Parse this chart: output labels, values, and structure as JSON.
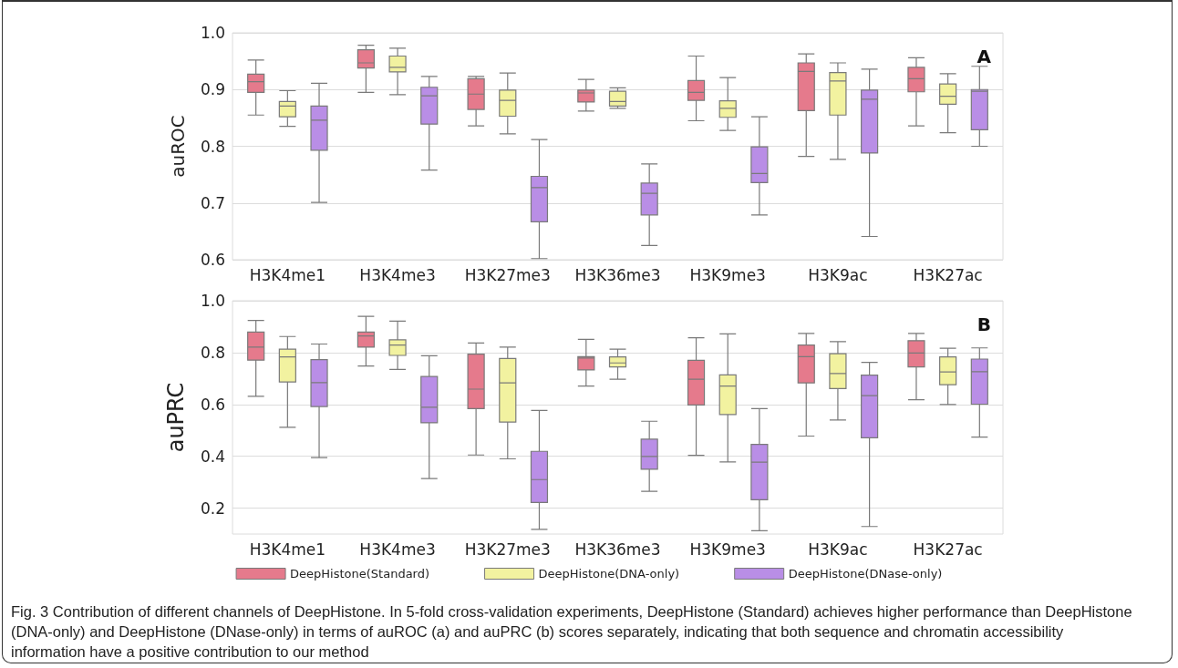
{
  "chart_data": [
    {
      "type": "box",
      "ylabel": "auROC",
      "categories": [
        "H3K4me1",
        "H3K4me3",
        "H3K27me3",
        "H3K36me3",
        "H3K9me3",
        "H3K9ac",
        "H3K27ac"
      ],
      "ylim": [
        0.6,
        1.0
      ],
      "yticks": [
        0.6,
        0.7,
        0.8,
        0.9,
        {
          "value": 1.0,
          "label": "1.0"
        }
      ],
      "grid": "y",
      "legend": false,
      "annotations": [
        "A"
      ],
      "series": [
        {
          "color": "#e57a8c",
          "boxes": [
            {
              "low": 0.855,
              "q1": 0.895,
              "median": 0.914,
              "q3": 0.927,
              "high": 0.952
            },
            {
              "low": 0.895,
              "q1": 0.938,
              "median": 0.947,
              "q3": 0.97,
              "high": 0.978
            },
            {
              "low": 0.836,
              "q1": 0.865,
              "median": 0.892,
              "q3": 0.919,
              "high": 0.923
            },
            {
              "low": 0.862,
              "q1": 0.878,
              "median": 0.894,
              "q3": 0.899,
              "high": 0.918
            },
            {
              "low": 0.845,
              "q1": 0.881,
              "median": 0.895,
              "q3": 0.916,
              "high": 0.959
            },
            {
              "low": 0.782,
              "q1": 0.863,
              "median": 0.932,
              "q3": 0.947,
              "high": 0.963
            },
            {
              "low": 0.836,
              "q1": 0.896,
              "median": 0.919,
              "q3": 0.939,
              "high": 0.956
            }
          ]
        },
        {
          "color": "#f2f2a0",
          "boxes": [
            {
              "low": 0.835,
              "q1": 0.852,
              "median": 0.871,
              "q3": 0.879,
              "high": 0.898
            },
            {
              "low": 0.891,
              "q1": 0.931,
              "median": 0.939,
              "q3": 0.959,
              "high": 0.973
            },
            {
              "low": 0.822,
              "q1": 0.853,
              "median": 0.881,
              "q3": 0.899,
              "high": 0.929
            },
            {
              "low": 0.867,
              "q1": 0.871,
              "median": 0.879,
              "q3": 0.897,
              "high": 0.903
            },
            {
              "low": 0.828,
              "q1": 0.851,
              "median": 0.867,
              "q3": 0.88,
              "high": 0.921
            },
            {
              "low": 0.777,
              "q1": 0.855,
              "median": 0.915,
              "q3": 0.93,
              "high": 0.947
            },
            {
              "low": 0.824,
              "q1": 0.874,
              "median": 0.888,
              "q3": 0.91,
              "high": 0.928
            }
          ]
        },
        {
          "color": "#b98ee6",
          "boxes": [
            {
              "low": 0.701,
              "q1": 0.793,
              "median": 0.846,
              "q3": 0.871,
              "high": 0.911
            },
            {
              "low": 0.758,
              "q1": 0.839,
              "median": 0.889,
              "q3": 0.904,
              "high": 0.923
            },
            {
              "low": 0.602,
              "q1": 0.667,
              "median": 0.727,
              "q3": 0.747,
              "high": 0.812
            },
            {
              "low": 0.625,
              "q1": 0.679,
              "median": 0.717,
              "q3": 0.735,
              "high": 0.769
            },
            {
              "low": 0.679,
              "q1": 0.736,
              "median": 0.752,
              "q3": 0.799,
              "high": 0.852
            },
            {
              "low": 0.641,
              "q1": 0.788,
              "median": 0.883,
              "q3": 0.899,
              "high": 0.936
            },
            {
              "low": 0.8,
              "q1": 0.829,
              "median": 0.897,
              "q3": 0.9,
              "high": 0.941
            }
          ]
        }
      ]
    },
    {
      "type": "box",
      "ylabel": "auPRC",
      "categories": [
        "H3K4me1",
        "H3K4me3",
        "H3K27me3",
        "H3K36me3",
        "H3K9me3",
        "H3K9ac",
        "H3K27ac"
      ],
      "ylim": [
        0.1,
        1.0
      ],
      "yticks": [
        0.2,
        0.4,
        0.6,
        0.8,
        {
          "value": 1.0,
          "label": "1.0"
        }
      ],
      "grid": "y",
      "legend": "bottom",
      "annotations": [
        "B",
        "Fig. 3 Contribution of different channels of DeepHistone. In 5-fold cross-validation experiments, DeepHistone (Standard) achieves higher performance than DeepHistone (DNA-only) and DeepHistone (DNase-only) in terms of auROC (a) and auPRC (b) scores separately, indicating that both sequence and chromatin accessibility information have a positive contribution to our method"
      ],
      "series": [
        {
          "name": "DeepHistone(Standard)",
          "color": "#e57a8c",
          "boxes": [
            {
              "low": 0.631,
              "q1": 0.771,
              "median": 0.821,
              "q3": 0.879,
              "high": 0.924
            },
            {
              "low": 0.748,
              "q1": 0.821,
              "median": 0.864,
              "q3": 0.879,
              "high": 0.94
            },
            {
              "low": 0.405,
              "q1": 0.584,
              "median": 0.659,
              "q3": 0.794,
              "high": 0.837
            },
            {
              "low": 0.671,
              "q1": 0.733,
              "median": 0.779,
              "q3": 0.784,
              "high": 0.851
            },
            {
              "low": 0.404,
              "q1": 0.598,
              "median": 0.697,
              "q3": 0.77,
              "high": 0.857
            },
            {
              "low": 0.478,
              "q1": 0.683,
              "median": 0.784,
              "q3": 0.829,
              "high": 0.874
            },
            {
              "low": 0.618,
              "q1": 0.745,
              "median": 0.798,
              "q3": 0.846,
              "high": 0.874
            }
          ]
        },
        {
          "name": "DeepHistone(DNA-only)",
          "color": "#f2f2a0",
          "boxes": [
            {
              "low": 0.512,
              "q1": 0.687,
              "median": 0.783,
              "q3": 0.813,
              "high": 0.862
            },
            {
              "low": 0.735,
              "q1": 0.789,
              "median": 0.829,
              "q3": 0.849,
              "high": 0.921
            },
            {
              "low": 0.39,
              "q1": 0.532,
              "median": 0.683,
              "q3": 0.777,
              "high": 0.821
            },
            {
              "low": 0.697,
              "q1": 0.745,
              "median": 0.76,
              "q3": 0.783,
              "high": 0.813
            },
            {
              "low": 0.378,
              "q1": 0.561,
              "median": 0.671,
              "q3": 0.714,
              "high": 0.872
            },
            {
              "low": 0.54,
              "q1": 0.661,
              "median": 0.719,
              "q3": 0.796,
              "high": 0.842
            },
            {
              "low": 0.6,
              "q1": 0.676,
              "median": 0.725,
              "q3": 0.783,
              "high": 0.817
            }
          ]
        },
        {
          "name": "DeepHistone(DNase-only)",
          "color": "#b98ee6",
          "boxes": [
            {
              "low": 0.395,
              "q1": 0.592,
              "median": 0.684,
              "q3": 0.773,
              "high": 0.833
            },
            {
              "low": 0.314,
              "q1": 0.529,
              "median": 0.589,
              "q3": 0.708,
              "high": 0.788
            },
            {
              "low": 0.118,
              "q1": 0.222,
              "median": 0.31,
              "q3": 0.419,
              "high": 0.577
            },
            {
              "low": 0.265,
              "q1": 0.35,
              "median": 0.399,
              "q3": 0.466,
              "high": 0.535
            },
            {
              "low": 0.113,
              "q1": 0.232,
              "median": 0.377,
              "q3": 0.446,
              "high": 0.584
            },
            {
              "low": 0.129,
              "q1": 0.471,
              "median": 0.634,
              "q3": 0.713,
              "high": 0.762
            },
            {
              "low": 0.474,
              "q1": 0.601,
              "median": 0.726,
              "q3": 0.775,
              "high": 0.818
            }
          ]
        }
      ]
    }
  ]
}
